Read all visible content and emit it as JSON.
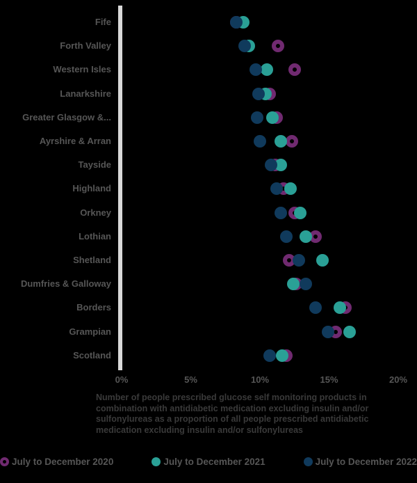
{
  "chart_data": {
    "type": "scatter",
    "subtype": "dot-plot",
    "orientation": "horizontal",
    "caption": "Number of people prescribed glucose self monitoring products in combination with antidiabetic medication excluding insulin and/or sulfonylureas as a proportion of all people prescribed antidiabetic medication excluding insulin and/or sulfonylureas",
    "categories": [
      "Fife",
      "Forth Valley",
      "Western Isles",
      "Lanarkshire",
      "Greater Glasgow &...",
      "Ayrshire & Arran",
      "Tayside",
      "Highland",
      "Orkney",
      "Lothian",
      "Shetland",
      "Dumfries & Galloway",
      "Borders",
      "Grampian",
      "Scotland"
    ],
    "x_axis": {
      "unit": "%",
      "min": 0,
      "max": 20,
      "tick_labels": [
        "0%",
        "5%",
        "10%",
        "15%",
        "20%"
      ],
      "tick_values": [
        0,
        5,
        10,
        15,
        20
      ],
      "grid": false
    },
    "series": [
      {
        "name": "July to December 2020",
        "marker": "ring",
        "color": "#702a70",
        "values": [
          8.3,
          11.3,
          12.5,
          10.7,
          11.2,
          12.3,
          11.1,
          11.7,
          12.5,
          14.0,
          12.1,
          12.6,
          16.2,
          15.5,
          11.9
        ]
      },
      {
        "name": "July to December 2021",
        "marker": "circle",
        "color": "#2aa096",
        "values": [
          8.8,
          9.2,
          10.5,
          10.4,
          10.9,
          11.5,
          11.5,
          12.2,
          12.9,
          13.3,
          14.5,
          12.4,
          15.8,
          16.5,
          11.6
        ]
      },
      {
        "name": "July to December 2022",
        "marker": "circle",
        "color": "#103a5c",
        "values": [
          8.3,
          8.9,
          9.7,
          9.9,
          9.8,
          10.0,
          10.8,
          11.2,
          11.5,
          11.9,
          12.8,
          13.3,
          14.0,
          14.9,
          10.7
        ]
      }
    ],
    "legend_position": "bottom",
    "colors": {
      "background": "#000000",
      "axis_line": "#d9d9d9",
      "label_text": "#565656",
      "caption_text": "#3a3a3a"
    }
  }
}
